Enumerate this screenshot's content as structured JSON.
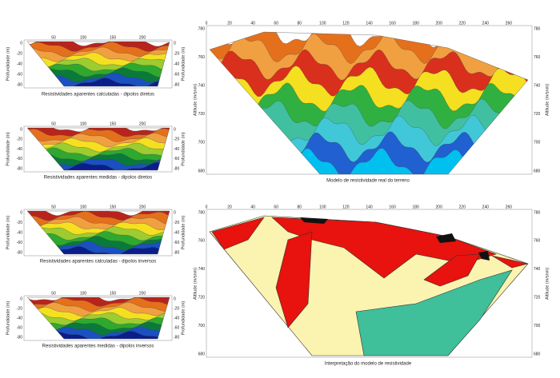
{
  "left_panels": [
    {
      "caption": "Resistividades aparentes calculadas - dipolos diretos",
      "y_label": "Profundidade (m)",
      "x_ticks": [
        "50",
        "100",
        "150",
        "200"
      ],
      "y_ticks": [
        "0",
        "-20",
        "-40",
        "-60",
        "-80"
      ]
    },
    {
      "caption": "Resistividades aparentes medidas - dipolos diretos",
      "y_label": "Profundidade (m)",
      "x_ticks": [
        "50",
        "100",
        "150",
        "200"
      ],
      "y_ticks": [
        "0",
        "-20",
        "-40",
        "-60",
        "-80"
      ]
    },
    {
      "caption": "Resistividades aparentes calculadas - dipolos inversos",
      "y_label": "Profundidade (m)",
      "x_ticks": [
        "50",
        "100",
        "150",
        "200"
      ],
      "y_ticks": [
        "0",
        "-20",
        "-40",
        "-60",
        "-80"
      ]
    },
    {
      "caption": "Resistividades aparentes medidas - dipolos inversos",
      "y_label": "Profundidade (m)",
      "x_ticks": [
        "50",
        "100",
        "150",
        "200"
      ],
      "y_ticks": [
        "0",
        "-20",
        "-40",
        "-60",
        "-80"
      ]
    }
  ],
  "right_panels": [
    {
      "caption": "Modelo de resistividade real do terreno",
      "y_label": "Altitude (m/snm)",
      "x_ticks": [
        "0",
        "20",
        "40",
        "60",
        "80",
        "100",
        "120",
        "140",
        "160",
        "180",
        "200",
        "220",
        "240",
        "260"
      ],
      "y_ticks": [
        "780",
        "760",
        "740",
        "720",
        "700",
        "680"
      ]
    },
    {
      "caption": "Interpretação do modelo de resistividade",
      "y_label": "Altitude (m/snm)",
      "x_ticks": [
        "0",
        "20",
        "40",
        "60",
        "80",
        "100",
        "120",
        "140",
        "160",
        "180",
        "200",
        "220",
        "240",
        "260"
      ],
      "y_ticks": [
        "780",
        "760",
        "740",
        "720",
        "700",
        "680"
      ]
    }
  ]
}
